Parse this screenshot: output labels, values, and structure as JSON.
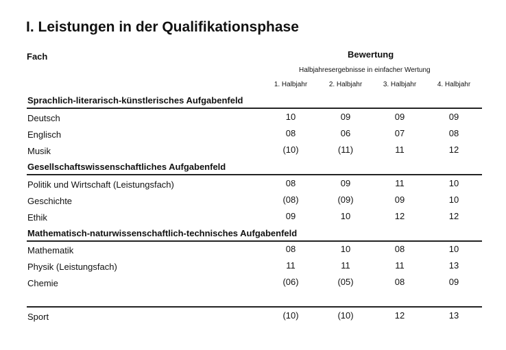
{
  "title": "I. Leistungen in der Qualifikationsphase",
  "header": {
    "fach": "Fach",
    "bewertung": "Bewertung",
    "subtitle": "Halbjahresergebnisse in einfacher Wertung",
    "columns": [
      "1. Halbjahr",
      "2. Halbjahr",
      "3. Halbjahr",
      "4. Halbjahr"
    ]
  },
  "sections": [
    {
      "name": "Sprachlich-literarisch-künstlerisches Aufgabenfeld",
      "rows": [
        {
          "subject": "Deutsch",
          "grades": [
            "10",
            "09",
            "09",
            "09"
          ]
        },
        {
          "subject": "Englisch",
          "grades": [
            "08",
            "06",
            "07",
            "08"
          ]
        },
        {
          "subject": "Musik",
          "grades": [
            "(10)",
            "(11)",
            "11",
            "12"
          ]
        }
      ]
    },
    {
      "name": "Gesellschaftswissenschaftliches Aufgabenfeld",
      "rows": [
        {
          "subject": "Politik und Wirtschaft (Leistungsfach)",
          "grades": [
            "08",
            "09",
            "11",
            "10"
          ]
        },
        {
          "subject": "Geschichte",
          "grades": [
            "(08)",
            "(09)",
            "09",
            "10"
          ]
        },
        {
          "subject": "Ethik",
          "grades": [
            "09",
            "10",
            "12",
            "12"
          ]
        }
      ]
    },
    {
      "name": "Mathematisch-naturwissenschaftlich-technisches Aufgabenfeld",
      "rows": [
        {
          "subject": "Mathematik",
          "grades": [
            "08",
            "10",
            "08",
            "10"
          ]
        },
        {
          "subject": "Physik (Leistungsfach)",
          "grades": [
            "11",
            "11",
            "11",
            "13"
          ]
        },
        {
          "subject": "Chemie",
          "grades": [
            "(06)",
            "(05)",
            "08",
            "09"
          ]
        }
      ]
    }
  ],
  "sport": {
    "subject": "Sport",
    "grades": [
      "(10)",
      "(10)",
      "12",
      "13"
    ]
  }
}
